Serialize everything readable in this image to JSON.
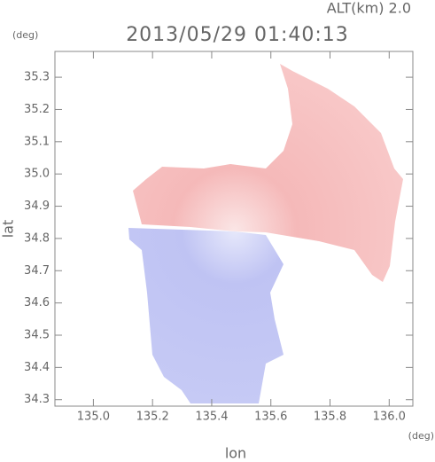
{
  "chart_data": {
    "type": "field",
    "title": "2013/05/29 01:40:13",
    "annotation": "ALT(km) 2.0",
    "xlabel": "lon",
    "ylabel": "lat",
    "x_unit": "(deg)",
    "y_unit": "(deg)",
    "xlim": [
      134.87,
      136.08
    ],
    "ylim": [
      34.28,
      35.38
    ],
    "xticks": [
      {
        "value": 135,
        "label": "135.0"
      },
      135.2,
      135.4,
      135.6,
      135.8,
      {
        "value": 136,
        "label": "136.0"
      }
    ],
    "yticks": [
      34.3,
      34.4,
      34.5,
      34.6,
      34.7,
      34.8,
      34.9,
      {
        "value": 35,
        "label": "35.0"
      },
      35.1,
      35.2,
      35.3
    ]
  }
}
